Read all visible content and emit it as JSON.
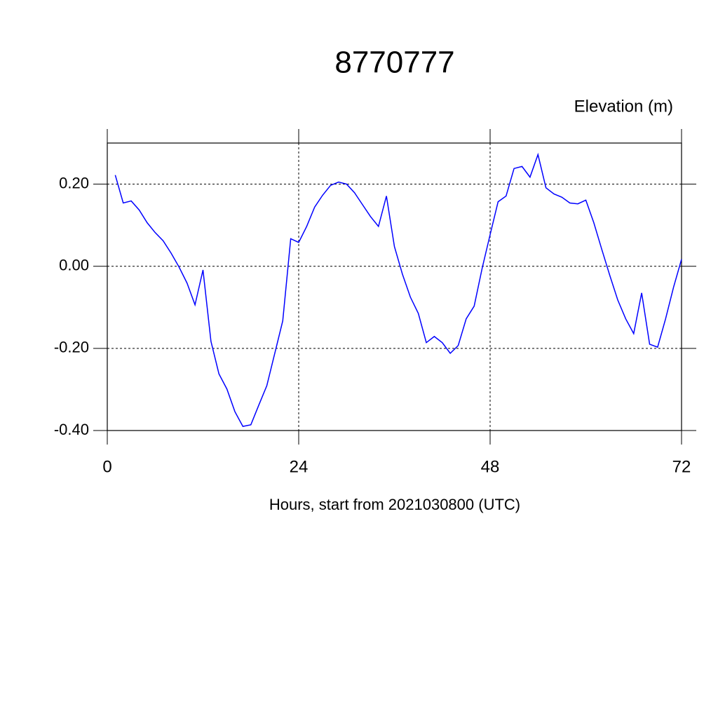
{
  "chart_data": {
    "type": "line",
    "title": "8770777",
    "subtitle": "Elevation (m)",
    "x_label": "Hours, start from 2021030800 (UTC)",
    "x": [
      1,
      2,
      3,
      4,
      5,
      6,
      7,
      8,
      9,
      10,
      11,
      12,
      13,
      14,
      15,
      16,
      17,
      18,
      19,
      20,
      21,
      22,
      23,
      24,
      25,
      26,
      27,
      28,
      29,
      30,
      31,
      32,
      33,
      34,
      35,
      36,
      37,
      38,
      39,
      40,
      41,
      42,
      43,
      44,
      45,
      46,
      47,
      48,
      49,
      50,
      51,
      52,
      53,
      54,
      55,
      56,
      57,
      58,
      59,
      60,
      61,
      62,
      63,
      64,
      65,
      66,
      67,
      68,
      69,
      70,
      71,
      72
    ],
    "series": [
      {
        "color": "#0000ff",
        "values": [
          0.222,
          0.154,
          0.159,
          0.137,
          0.106,
          0.082,
          0.062,
          0.032,
          -0.002,
          -0.041,
          -0.094,
          -0.009,
          -0.183,
          -0.262,
          -0.299,
          -0.354,
          -0.39,
          -0.386,
          -0.338,
          -0.291,
          -0.212,
          -0.133,
          0.067,
          0.058,
          0.097,
          0.144,
          0.173,
          0.197,
          0.205,
          0.2,
          0.179,
          0.15,
          0.121,
          0.097,
          0.171,
          0.048,
          -0.019,
          -0.075,
          -0.115,
          -0.186,
          -0.171,
          -0.186,
          -0.212,
          -0.193,
          -0.128,
          -0.097,
          -0.005,
          0.077,
          0.157,
          0.171,
          0.238,
          0.243,
          0.217,
          0.272,
          0.191,
          0.176,
          0.168,
          0.154,
          0.152,
          0.161,
          0.106,
          0.041,
          -0.022,
          -0.082,
          -0.128,
          -0.164,
          -0.065,
          -0.19,
          -0.197,
          -0.128,
          -0.051,
          0.017
        ]
      }
    ],
    "xlim": [
      0,
      72
    ],
    "xticks": [
      0,
      24,
      48,
      72
    ],
    "ylim": [
      -0.4,
      0.3
    ],
    "yticks": [
      {
        "value": 0.2,
        "label": "0.20"
      },
      {
        "value": 0,
        "label": "0.00"
      },
      {
        "value": -0.2,
        "label": "-0.20"
      },
      {
        "value": -0.4,
        "label": "-0.40"
      }
    ],
    "grid": true
  }
}
